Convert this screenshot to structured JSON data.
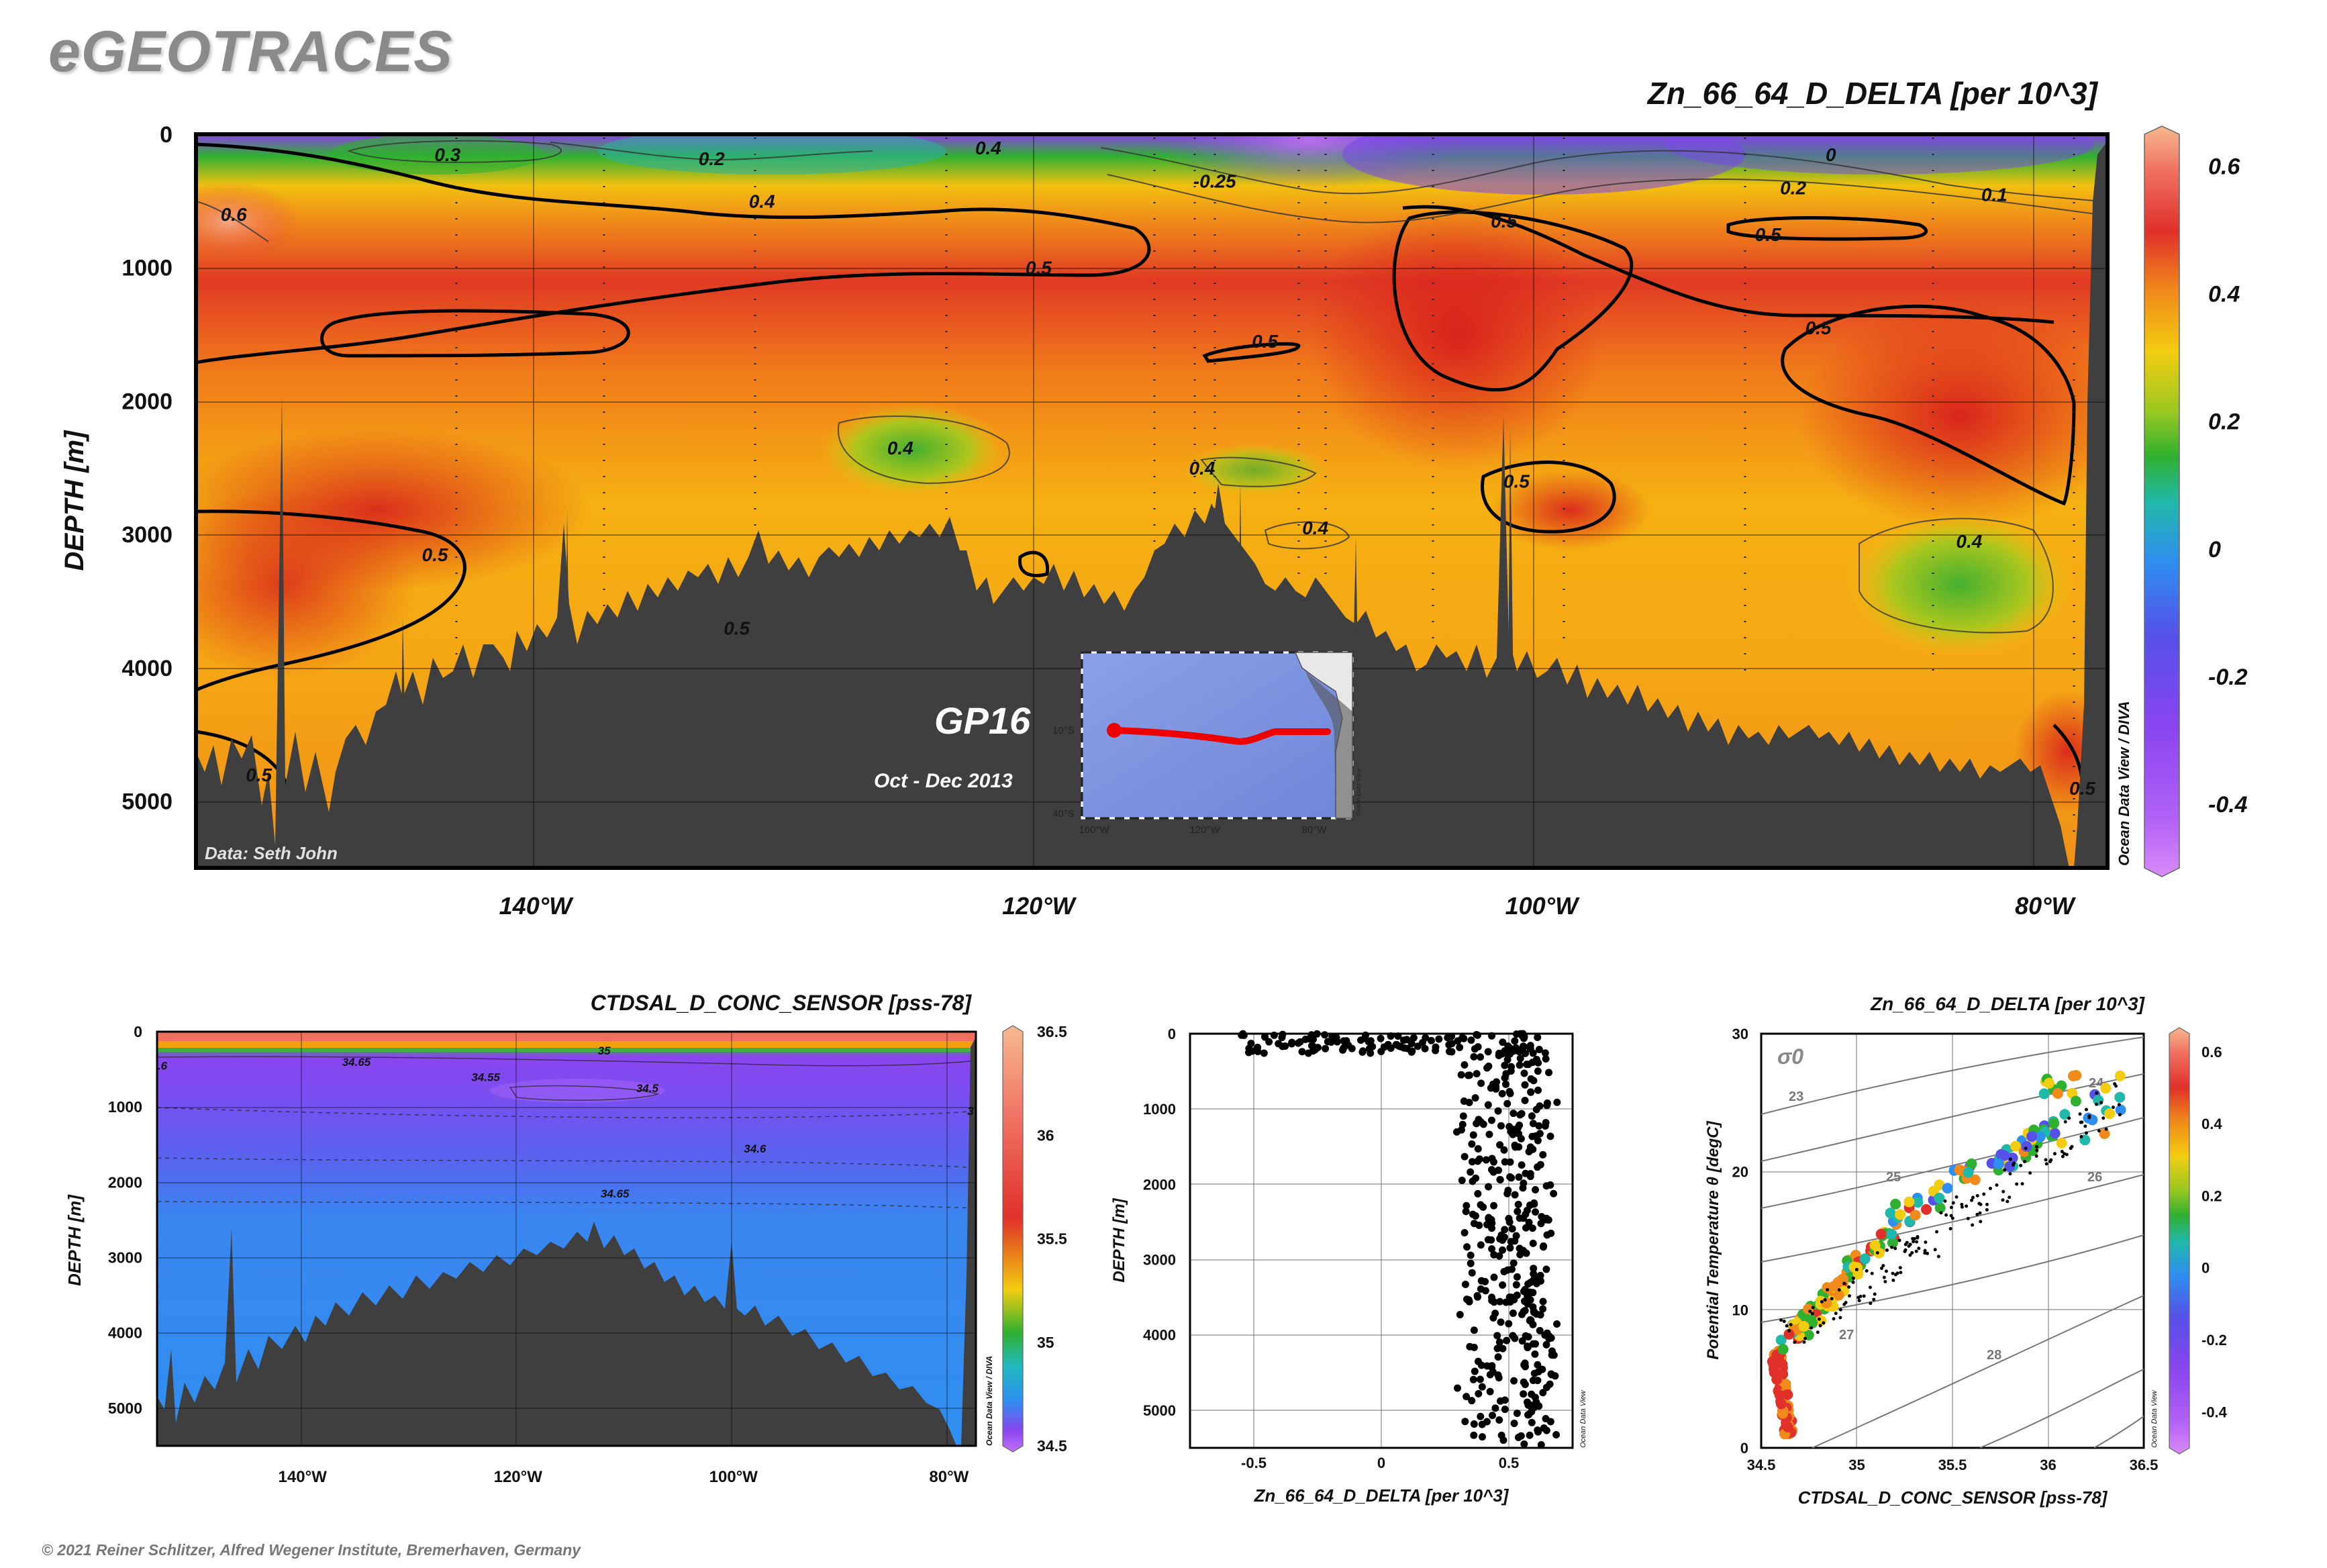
{
  "brand": "eGEOTRACES",
  "copyright": "© 2021 Reiner Schlitzer, Alfred Wegener Institute, Bremerhaven, Germany",
  "chart_data": [
    {
      "id": "main-section",
      "type": "heatmap",
      "title": "Zn_66_64_D_DELTA [per 10^3]",
      "ylabel": "DEPTH [m]",
      "x_ticks": [
        "140°W",
        "120°W",
        "100°W",
        "80°W"
      ],
      "x_tick_values": [
        -140,
        -120,
        -100,
        -80
      ],
      "xlim": [
        -153.5,
        -77.5
      ],
      "y_ticks": [
        0,
        1000,
        2000,
        3000,
        4000,
        5000
      ],
      "ylim": [
        0,
        5500
      ],
      "colorbar": {
        "ticks": [
          "0.6",
          "0.4",
          "0.2",
          "0",
          "-0.2",
          "-0.4"
        ],
        "range": [
          -0.5,
          0.65
        ]
      },
      "contour_labels": [
        {
          "text": "0.3",
          "x": -143.5,
          "y": 150
        },
        {
          "text": "0.2",
          "x": -133,
          "y": 180
        },
        {
          "text": "0.4",
          "x": -122,
          "y": 100
        },
        {
          "text": "0.4",
          "x": -131,
          "y": 500
        },
        {
          "text": "0.6",
          "x": -152,
          "y": 600
        },
        {
          "text": "0",
          "x": -88.5,
          "y": 150
        },
        {
          "text": "-0.25",
          "x": -113,
          "y": 350
        },
        {
          "text": "0.2",
          "x": -90,
          "y": 400
        },
        {
          "text": "0.1",
          "x": -82,
          "y": 450
        },
        {
          "text": "0.5",
          "x": -101.5,
          "y": 650
        },
        {
          "text": "0.5",
          "x": -91,
          "y": 750
        },
        {
          "text": "0.5",
          "x": -120,
          "y": 1000
        },
        {
          "text": "0.5",
          "x": -111,
          "y": 1550
        },
        {
          "text": "0.5",
          "x": -89,
          "y": 1450
        },
        {
          "text": "0.4",
          "x": -125.5,
          "y": 2350
        },
        {
          "text": "0.4",
          "x": -113.5,
          "y": 2500
        },
        {
          "text": "0.4",
          "x": -109,
          "y": 2950
        },
        {
          "text": "0.5",
          "x": -101,
          "y": 2600
        },
        {
          "text": "0.5",
          "x": -144,
          "y": 3150
        },
        {
          "text": "0.4",
          "x": -83,
          "y": 3050
        },
        {
          "text": "0.5",
          "x": -132,
          "y": 3700
        },
        {
          "text": "0.5",
          "x": -151,
          "y": 4800
        },
        {
          "text": "0.5",
          "x": -78.5,
          "y": 4900
        }
      ],
      "annotations": {
        "section_name": "GP16",
        "period": "Oct - Dec 2013",
        "data_credit": "Data: Seth John",
        "software": "Ocean Data View / DIVA"
      },
      "inset_map": {
        "lat_labels": [
          "10°S",
          "40°S"
        ],
        "lon_labels": [
          "160°W",
          "120°W",
          "80°W"
        ],
        "software": "Ocean Data View"
      }
    },
    {
      "id": "salinity-section",
      "type": "heatmap",
      "title": "CTDSAL_D_CONC_SENSOR [pss-78]",
      "ylabel": "DEPTH [m]",
      "x_ticks": [
        "140°W",
        "120°W",
        "100°W",
        "80°W"
      ],
      "x_tick_values": [
        -140,
        -120,
        -100,
        -80
      ],
      "xlim": [
        -153.5,
        -77.5
      ],
      "y_ticks": [
        0,
        1000,
        2000,
        3000,
        4000,
        5000
      ],
      "ylim": [
        0,
        5500
      ],
      "colorbar": {
        "ticks": [
          "36.5",
          "36",
          "35.5",
          "35",
          "34.5"
        ],
        "range": [
          34.5,
          36.5
        ]
      },
      "contour_labels": [
        {
          "text": "34.65",
          "x": -135,
          "y": 400
        },
        {
          "text": "34.55",
          "x": -123,
          "y": 600
        },
        {
          "text": "34.5",
          "x": -108,
          "y": 750
        },
        {
          "text": "35",
          "x": -112,
          "y": 250
        },
        {
          "text": "34.6",
          "x": -98,
          "y": 1550
        },
        {
          "text": "34.65",
          "x": -111,
          "y": 2150
        },
        {
          "text": ".6",
          "x": -153,
          "y": 450
        },
        {
          "text": "3",
          "x": -78,
          "y": 1050
        }
      ],
      "software": "Ocean Data View / DIVA"
    },
    {
      "id": "profile-scatter",
      "type": "scatter",
      "xlabel": "Zn_66_64_D_DELTA [per 10^3]",
      "ylabel": "DEPTH [m]",
      "x_ticks": [
        "-0.5",
        "0",
        "0.5"
      ],
      "xlim": [
        -0.75,
        0.75
      ],
      "ylim": [
        0,
        5500
      ],
      "y_ticks": [
        0,
        1000,
        2000,
        3000,
        4000,
        5000
      ],
      "software": "Ocean Data View"
    },
    {
      "id": "ts-diagram",
      "type": "scatter",
      "title": "Zn_66_64_D_DELTA [per 10^3]",
      "xlabel": "CTDSAL_D_CONC_SENSOR [pss-78]",
      "ylabel": "Potential Temperature θ [degC]",
      "x_ticks": [
        "34.5",
        "35",
        "35.5",
        "36",
        "36.5"
      ],
      "xlim": [
        34.5,
        36.5
      ],
      "y_ticks": [
        "0",
        "10",
        "20",
        "30"
      ],
      "ylim": [
        0,
        30
      ],
      "sigma_label": "σ0",
      "isopycnal_labels": [
        "23",
        "24",
        "25",
        "26",
        "27",
        "28"
      ],
      "colorbar": {
        "ticks": [
          "0.6",
          "0.4",
          "0.2",
          "0",
          "-0.2",
          "-0.4"
        ],
        "range": [
          -0.5,
          0.65
        ]
      },
      "software": "Ocean Data View"
    }
  ]
}
